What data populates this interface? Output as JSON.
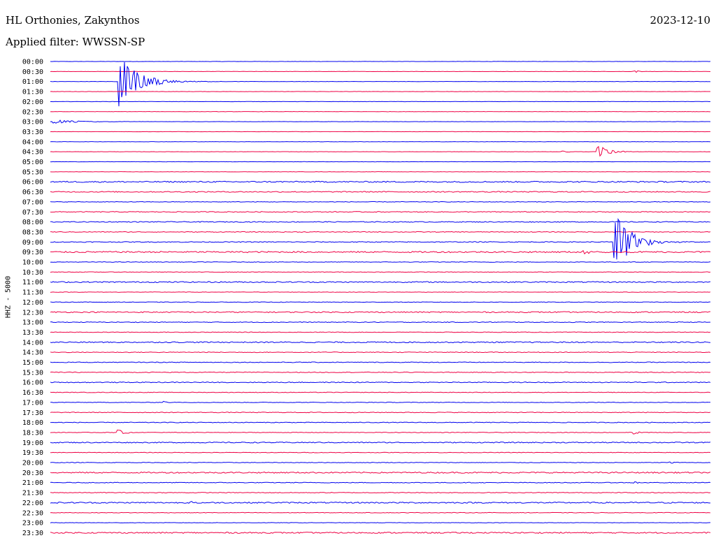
{
  "header": {
    "station": "HL Orthonies, Zakynthos",
    "date": "2023-12-10",
    "filter": "Applied filter: WWSSN-SP"
  },
  "colors": {
    "even": "#0000ee",
    "odd": "#ee0044"
  },
  "chart_data": {
    "type": "line",
    "channel_label": "HHZ - 5000",
    "x_span_minutes": [
      0,
      30
    ],
    "row_labels": [
      "00:00",
      "00:30",
      "01:00",
      "01:30",
      "02:00",
      "02:30",
      "03:00",
      "03:30",
      "04:00",
      "04:30",
      "05:00",
      "05:30",
      "06:00",
      "06:30",
      "07:00",
      "07:30",
      "08:00",
      "08:30",
      "09:00",
      "09:30",
      "10:00",
      "10:30",
      "11:00",
      "11:30",
      "12:00",
      "12:30",
      "13:00",
      "13:30",
      "14:00",
      "14:30",
      "15:00",
      "15:30",
      "16:00",
      "16:30",
      "17:00",
      "17:30",
      "18:00",
      "18:30",
      "19:00",
      "19:30",
      "20:00",
      "20:30",
      "21:00",
      "21:30",
      "22:00",
      "22:30",
      "23:00",
      "23:30"
    ],
    "row_noise": [
      0.2,
      0.2,
      0.2,
      0.2,
      0.2,
      0.2,
      0.2,
      0.2,
      0.2,
      0.2,
      0.2,
      0.2,
      0.9,
      0.7,
      0.4,
      0.6,
      0.6,
      0.5,
      0.6,
      1.0,
      0.4,
      0.4,
      0.8,
      0.3,
      0.4,
      0.8,
      0.5,
      0.4,
      0.8,
      0.5,
      0.5,
      0.5,
      0.6,
      0.4,
      0.4,
      0.5,
      0.5,
      0.4,
      0.7,
      0.4,
      0.4,
      0.9,
      0.5,
      0.5,
      0.9,
      0.4,
      0.3,
      0.9
    ],
    "events": [
      {
        "row": 2,
        "t": 3.1,
        "amp": 40,
        "dur": 1.8
      },
      {
        "row": 6,
        "t": 0.1,
        "amp": 3,
        "dur": 2.5
      },
      {
        "row": 9,
        "t": 24.8,
        "amp": 12,
        "dur": 1.0
      },
      {
        "row": 9,
        "t": 23.2,
        "amp": 3,
        "dur": 0.4
      },
      {
        "row": 18,
        "t": 25.6,
        "amp": 48,
        "dur": 1.5
      },
      {
        "row": 19,
        "t": 24.2,
        "amp": 3,
        "dur": 0.8
      },
      {
        "row": 37,
        "t": 3.0,
        "amp": 6,
        "dur": 0.6
      },
      {
        "row": 37,
        "t": 26.5,
        "amp": 3,
        "dur": 0.4
      },
      {
        "row": 44,
        "t": 6.3,
        "amp": 4,
        "dur": 0.3
      },
      {
        "row": 34,
        "t": 5.1,
        "amp": 3,
        "dur": 0.4
      },
      {
        "row": 42,
        "t": 26.5,
        "amp": 2,
        "dur": 0.4
      },
      {
        "row": 40,
        "t": 28.1,
        "amp": 2,
        "dur": 0.5
      },
      {
        "row": 1,
        "t": 26.5,
        "amp": 2,
        "dur": 0.5
      }
    ]
  }
}
